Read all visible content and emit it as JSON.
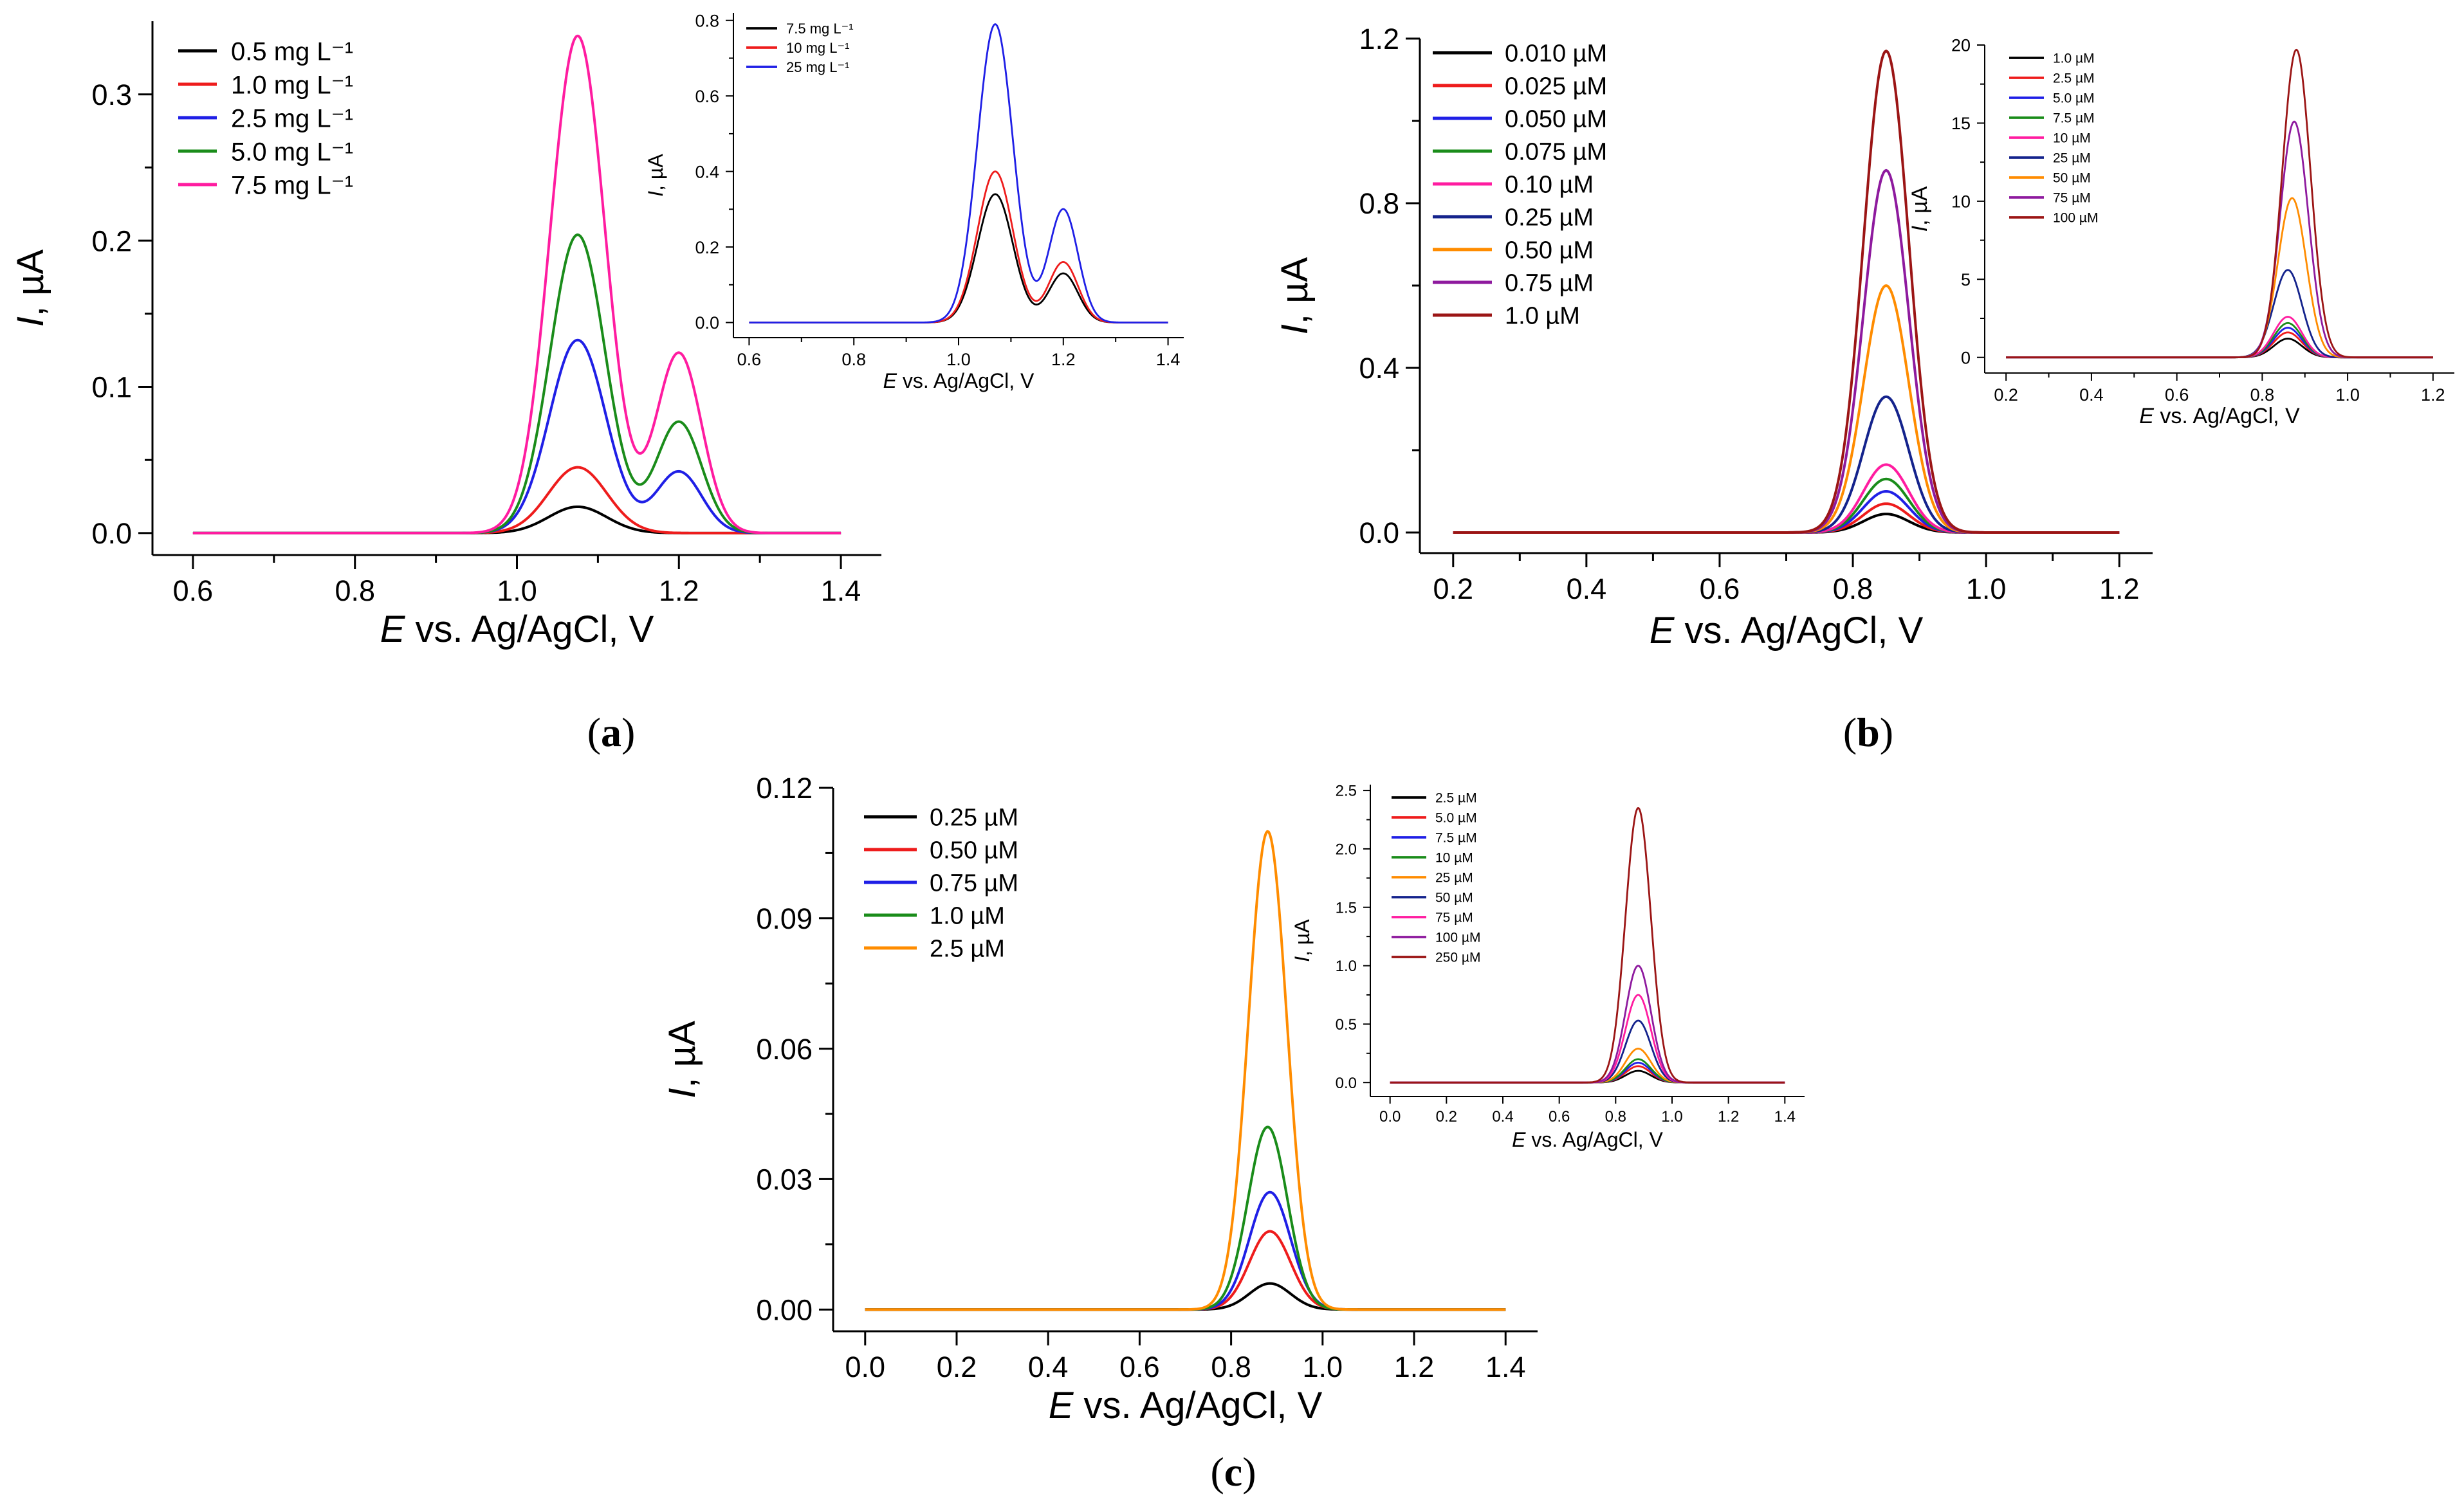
{
  "chart_data": [
    {
      "id": "a-main",
      "type": "line",
      "panel": "a",
      "role": "main",
      "xlabel_italic": "E",
      "xlabel_rest": " vs. Ag/AgCl, V",
      "ylabel_italic": "I",
      "ylabel_rest": ", µA",
      "xlim": [
        0.55,
        1.45
      ],
      "ylim": [
        -0.015,
        0.35
      ],
      "xticks": [
        0.6,
        0.8,
        1.0,
        1.2,
        1.4
      ],
      "xtick_labels": [
        "0.6",
        "0.8",
        "1.0",
        "1.2",
        "1.4"
      ],
      "yticks": [
        0.0,
        0.1,
        0.2,
        0.3
      ],
      "ytick_labels": [
        "0.0",
        "0.1",
        "0.2",
        "0.3"
      ],
      "legend_position": "top-left",
      "series": [
        {
          "name": "0.5 mg L⁻¹",
          "color": "#000000",
          "x_range": [
            0.6,
            1.4
          ],
          "peaks": [
            {
              "x": 1.075,
              "height": 0.018,
              "width": 0.036
            }
          ]
        },
        {
          "name": "1.0 mg L⁻¹",
          "color": "#ee1c1c",
          "x_range": [
            0.6,
            1.4
          ],
          "peaks": [
            {
              "x": 1.075,
              "height": 0.045,
              "width": 0.036
            }
          ]
        },
        {
          "name": "2.5 mg L⁻¹",
          "color": "#1f1fe6",
          "x_range": [
            0.6,
            1.4
          ],
          "peaks": [
            {
              "x": 1.075,
              "height": 0.132,
              "width": 0.035
            },
            {
              "x": 1.2,
              "height": 0.042,
              "width": 0.028
            }
          ]
        },
        {
          "name": "5.0 mg L⁻¹",
          "color": "#1a8c1a",
          "x_range": [
            0.6,
            1.4
          ],
          "peaks": [
            {
              "x": 1.075,
              "height": 0.204,
              "width": 0.034
            },
            {
              "x": 1.2,
              "height": 0.076,
              "width": 0.028
            }
          ]
        },
        {
          "name": "7.5 mg L⁻¹",
          "color": "#ff1ca0",
          "x_range": [
            0.6,
            1.4
          ],
          "peaks": [
            {
              "x": 1.075,
              "height": 0.34,
              "width": 0.034
            },
            {
              "x": 1.2,
              "height": 0.123,
              "width": 0.028
            }
          ]
        }
      ]
    },
    {
      "id": "a-inset",
      "type": "line",
      "panel": "a",
      "role": "inset",
      "xlabel_italic": "E",
      "xlabel_rest": " vs. Ag/AgCl, V",
      "ylabel_italic": "I",
      "ylabel_rest": ", µA",
      "xlim": [
        0.57,
        1.43
      ],
      "ylim": [
        -0.04,
        0.82
      ],
      "xticks": [
        0.6,
        0.8,
        1.0,
        1.2,
        1.4
      ],
      "xtick_labels": [
        "0.6",
        "0.8",
        "1.0",
        "1.2",
        "1.4"
      ],
      "yticks": [
        0.0,
        0.2,
        0.4,
        0.6,
        0.8
      ],
      "ytick_labels": [
        "0.0",
        "0.2",
        "0.4",
        "0.6",
        "0.8"
      ],
      "legend_position": "top-left",
      "series": [
        {
          "name": "7.5 mg L⁻¹",
          "color": "#000000",
          "x_range": [
            0.6,
            1.4
          ],
          "peaks": [
            {
              "x": 1.07,
              "height": 0.34,
              "width": 0.034
            },
            {
              "x": 1.2,
              "height": 0.13,
              "width": 0.028
            }
          ]
        },
        {
          "name": "10 mg L⁻¹",
          "color": "#ee1c1c",
          "x_range": [
            0.6,
            1.4
          ],
          "peaks": [
            {
              "x": 1.07,
              "height": 0.4,
              "width": 0.034
            },
            {
              "x": 1.2,
              "height": 0.16,
              "width": 0.028
            }
          ]
        },
        {
          "name": "25 mg L⁻¹",
          "color": "#1f1fe6",
          "x_range": [
            0.6,
            1.4
          ],
          "peaks": [
            {
              "x": 1.07,
              "height": 0.79,
              "width": 0.034
            },
            {
              "x": 1.2,
              "height": 0.3,
              "width": 0.028
            }
          ]
        }
      ]
    },
    {
      "id": "b-main",
      "type": "line",
      "panel": "b",
      "role": "main",
      "xlabel_italic": "E",
      "xlabel_rest": " vs. Ag/AgCl, V",
      "ylabel_italic": "I",
      "ylabel_rest": ", µA",
      "xlim": [
        0.15,
        1.25
      ],
      "ylim": [
        -0.05,
        1.2
      ],
      "xticks": [
        0.2,
        0.4,
        0.6,
        0.8,
        1.0,
        1.2
      ],
      "xtick_labels": [
        "0.2",
        "0.4",
        "0.6",
        "0.8",
        "1.0",
        "1.2"
      ],
      "yticks": [
        0.0,
        0.4,
        0.8,
        1.2
      ],
      "ytick_labels": [
        "0.0",
        "0.4",
        "0.8",
        "1.2"
      ],
      "legend_position": "top-left",
      "series": [
        {
          "name": "0.010 µM",
          "color": "#000000",
          "x_range": [
            0.2,
            1.2
          ],
          "peaks": [
            {
              "x": 0.85,
              "height": 0.045,
              "width": 0.034
            }
          ]
        },
        {
          "name": "0.025 µM",
          "color": "#ee1c1c",
          "x_range": [
            0.2,
            1.2
          ],
          "peaks": [
            {
              "x": 0.85,
              "height": 0.07,
              "width": 0.034
            }
          ]
        },
        {
          "name": "0.050 µM",
          "color": "#1f1fe6",
          "x_range": [
            0.2,
            1.2
          ],
          "peaks": [
            {
              "x": 0.85,
              "height": 0.1,
              "width": 0.034
            }
          ]
        },
        {
          "name": "0.075 µM",
          "color": "#1a8c1a",
          "x_range": [
            0.2,
            1.2
          ],
          "peaks": [
            {
              "x": 0.85,
              "height": 0.13,
              "width": 0.034
            }
          ]
        },
        {
          "name": "0.10 µM",
          "color": "#ff1ca0",
          "x_range": [
            0.2,
            1.2
          ],
          "peaks": [
            {
              "x": 0.85,
              "height": 0.165,
              "width": 0.034
            }
          ]
        },
        {
          "name": "0.25 µM",
          "color": "#14238c",
          "x_range": [
            0.2,
            1.2
          ],
          "peaks": [
            {
              "x": 0.85,
              "height": 0.33,
              "width": 0.034
            }
          ]
        },
        {
          "name": "0.50 µM",
          "color": "#ff8c00",
          "x_range": [
            0.2,
            1.2
          ],
          "peaks": [
            {
              "x": 0.85,
              "height": 0.6,
              "width": 0.034
            }
          ]
        },
        {
          "name": "0.75 µM",
          "color": "#8e1a9e",
          "x_range": [
            0.2,
            1.2
          ],
          "peaks": [
            {
              "x": 0.85,
              "height": 0.88,
              "width": 0.034
            }
          ]
        },
        {
          "name": "1.0 µM",
          "color": "#9b1515",
          "x_range": [
            0.2,
            1.2
          ],
          "peaks": [
            {
              "x": 0.85,
              "height": 1.17,
              "width": 0.034
            }
          ]
        }
      ]
    },
    {
      "id": "b-inset",
      "type": "line",
      "panel": "b",
      "role": "inset",
      "xlabel_italic": "E",
      "xlabel_rest": " vs. Ag/AgCl, V",
      "ylabel_italic": "I",
      "ylabel_rest": ", µA",
      "xlim": [
        0.15,
        1.25
      ],
      "ylim": [
        -1,
        20
      ],
      "xticks": [
        0.2,
        0.4,
        0.6,
        0.8,
        1.0,
        1.2
      ],
      "xtick_labels": [
        "0.2",
        "0.4",
        "0.6",
        "0.8",
        "1.0",
        "1.2"
      ],
      "yticks": [
        0,
        5,
        10,
        15,
        20
      ],
      "ytick_labels": [
        "0",
        "5",
        "10",
        "15",
        "20"
      ],
      "legend_position": "top-left",
      "series": [
        {
          "name": "1.0 µM",
          "color": "#000000",
          "x_range": [
            0.2,
            1.2
          ],
          "peaks": [
            {
              "x": 0.86,
              "height": 1.2,
              "width": 0.033
            }
          ]
        },
        {
          "name": "2.5 µM",
          "color": "#ee1c1c",
          "x_range": [
            0.2,
            1.2
          ],
          "peaks": [
            {
              "x": 0.86,
              "height": 1.6,
              "width": 0.033
            }
          ]
        },
        {
          "name": "5.0 µM",
          "color": "#1f1fe6",
          "x_range": [
            0.2,
            1.2
          ],
          "peaks": [
            {
              "x": 0.86,
              "height": 1.9,
              "width": 0.033
            }
          ]
        },
        {
          "name": "7.5 µM",
          "color": "#1a8c1a",
          "x_range": [
            0.2,
            1.2
          ],
          "peaks": [
            {
              "x": 0.86,
              "height": 2.2,
              "width": 0.033
            }
          ]
        },
        {
          "name": "10 µM",
          "color": "#ff1ca0",
          "x_range": [
            0.2,
            1.2
          ],
          "peaks": [
            {
              "x": 0.86,
              "height": 2.6,
              "width": 0.033
            }
          ]
        },
        {
          "name": "25 µM",
          "color": "#14238c",
          "x_range": [
            0.2,
            1.2
          ],
          "peaks": [
            {
              "x": 0.86,
              "height": 5.6,
              "width": 0.033
            }
          ]
        },
        {
          "name": "50 µM",
          "color": "#ff8c00",
          "x_range": [
            0.2,
            1.2
          ],
          "peaks": [
            {
              "x": 0.87,
              "height": 10.2,
              "width": 0.033
            }
          ]
        },
        {
          "name": "75 µM",
          "color": "#8e1a9e",
          "x_range": [
            0.2,
            1.2
          ],
          "peaks": [
            {
              "x": 0.875,
              "height": 15.1,
              "width": 0.033
            }
          ]
        },
        {
          "name": "100 µM",
          "color": "#9b1515",
          "x_range": [
            0.2,
            1.2
          ],
          "peaks": [
            {
              "x": 0.88,
              "height": 19.7,
              "width": 0.033
            }
          ]
        }
      ]
    },
    {
      "id": "c-main",
      "type": "line",
      "panel": "c",
      "role": "main",
      "xlabel_italic": "E",
      "xlabel_rest": " vs. Ag/AgCl, V",
      "ylabel_italic": "I",
      "ylabel_rest": ", µA",
      "xlim": [
        -0.07,
        1.47
      ],
      "ylim": [
        -0.005,
        0.12
      ],
      "xticks": [
        0.0,
        0.2,
        0.4,
        0.6,
        0.8,
        1.0,
        1.2,
        1.4
      ],
      "xtick_labels": [
        "0.0",
        "0.2",
        "0.4",
        "0.6",
        "0.8",
        "1.0",
        "1.2",
        "1.4"
      ],
      "yticks": [
        0.0,
        0.03,
        0.06,
        0.09,
        0.12
      ],
      "ytick_labels": [
        "0.00",
        "0.03",
        "0.06",
        "0.09",
        "0.12"
      ],
      "legend_position": "top-left",
      "series": [
        {
          "name": "0.25 µM",
          "color": "#000000",
          "x_range": [
            0.0,
            1.4
          ],
          "peaks": [
            {
              "x": 0.885,
              "height": 0.006,
              "width": 0.045
            }
          ]
        },
        {
          "name": "0.50 µM",
          "color": "#ee1c1c",
          "x_range": [
            0.0,
            1.4
          ],
          "peaks": [
            {
              "x": 0.885,
              "height": 0.018,
              "width": 0.045
            }
          ]
        },
        {
          "name": "0.75 µM",
          "color": "#1f1fe6",
          "x_range": [
            0.0,
            1.4
          ],
          "peaks": [
            {
              "x": 0.885,
              "height": 0.027,
              "width": 0.045
            }
          ]
        },
        {
          "name": "1.0 µM",
          "color": "#1a8c1a",
          "x_range": [
            0.0,
            1.4
          ],
          "peaks": [
            {
              "x": 0.88,
              "height": 0.042,
              "width": 0.043
            }
          ]
        },
        {
          "name": "2.5 µM",
          "color": "#ff8c00",
          "x_range": [
            0.0,
            1.4
          ],
          "peaks": [
            {
              "x": 0.88,
              "height": 0.11,
              "width": 0.042
            }
          ]
        }
      ]
    },
    {
      "id": "c-inset",
      "type": "line",
      "panel": "c",
      "role": "inset",
      "xlabel_italic": "E",
      "xlabel_rest": " vs. Ag/AgCl, V",
      "ylabel_italic": "I",
      "ylabel_rest": ", µA",
      "xlim": [
        -0.07,
        1.47
      ],
      "ylim": [
        -0.12,
        2.55
      ],
      "xticks": [
        0.0,
        0.2,
        0.4,
        0.6,
        0.8,
        1.0,
        1.2,
        1.4
      ],
      "xtick_labels": [
        "0.0",
        "0.2",
        "0.4",
        "0.6",
        "0.8",
        "1.0",
        "1.2",
        "1.4"
      ],
      "yticks": [
        0.0,
        0.5,
        1.0,
        1.5,
        2.0,
        2.5
      ],
      "ytick_labels": [
        "0.0",
        "0.5",
        "1.0",
        "1.5",
        "2.0",
        "2.5"
      ],
      "legend_position": "top-left",
      "series": [
        {
          "name": "2.5 µM",
          "color": "#000000",
          "x_range": [
            0.0,
            1.4
          ],
          "peaks": [
            {
              "x": 0.88,
              "height": 0.1,
              "width": 0.045
            }
          ]
        },
        {
          "name": "5.0 µM",
          "color": "#ee1c1c",
          "x_range": [
            0.0,
            1.4
          ],
          "peaks": [
            {
              "x": 0.88,
              "height": 0.14,
              "width": 0.045
            }
          ]
        },
        {
          "name": "7.5 µM",
          "color": "#1f1fe6",
          "x_range": [
            0.0,
            1.4
          ],
          "peaks": [
            {
              "x": 0.88,
              "height": 0.17,
              "width": 0.045
            }
          ]
        },
        {
          "name": "10 µM",
          "color": "#1a8c1a",
          "x_range": [
            0.0,
            1.4
          ],
          "peaks": [
            {
              "x": 0.88,
              "height": 0.2,
              "width": 0.045
            }
          ]
        },
        {
          "name": "25 µM",
          "color": "#ff8c00",
          "x_range": [
            0.0,
            1.4
          ],
          "peaks": [
            {
              "x": 0.88,
              "height": 0.29,
              "width": 0.045
            }
          ]
        },
        {
          "name": "50 µM",
          "color": "#14238c",
          "x_range": [
            0.0,
            1.4
          ],
          "peaks": [
            {
              "x": 0.88,
              "height": 0.53,
              "width": 0.045
            }
          ]
        },
        {
          "name": "75 µM",
          "color": "#ff1ca0",
          "x_range": [
            0.0,
            1.4
          ],
          "peaks": [
            {
              "x": 0.88,
              "height": 0.75,
              "width": 0.045
            }
          ]
        },
        {
          "name": "100 µM",
          "color": "#8e1a9e",
          "x_range": [
            0.0,
            1.4
          ],
          "peaks": [
            {
              "x": 0.88,
              "height": 1.0,
              "width": 0.045
            }
          ]
        },
        {
          "name": "250 µM",
          "color": "#9b1515",
          "x_range": [
            0.0,
            1.4
          ],
          "peaks": [
            {
              "x": 0.88,
              "height": 2.35,
              "width": 0.045
            }
          ]
        }
      ]
    }
  ],
  "panel_labels": {
    "a": {
      "open": "(",
      "letter": "a",
      "close": ")"
    },
    "b": {
      "open": "(",
      "letter": "b",
      "close": ")"
    },
    "c": {
      "open": "(",
      "letter": "c",
      "close": ")"
    }
  }
}
